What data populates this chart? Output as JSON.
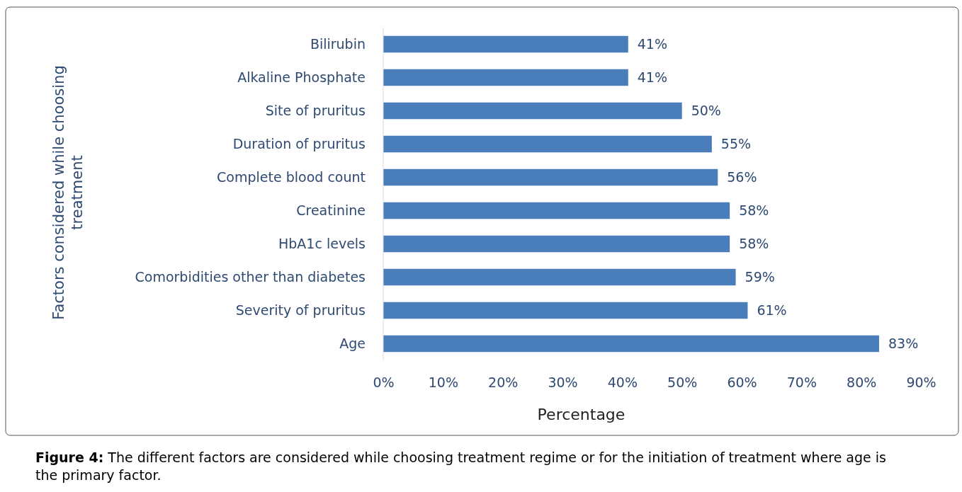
{
  "chart_data": {
    "type": "bar",
    "orientation": "horizontal",
    "categories": [
      "Bilirubin",
      "Alkaline Phosphate",
      "Site of pruritus",
      "Duration of  pruritus",
      "Complete blood count",
      "Creatinine",
      "HbA1c levels",
      "Comorbidities other than diabetes",
      "Severity of pruritus",
      "Age"
    ],
    "values": [
      41,
      41,
      50,
      55,
      56,
      58,
      58,
      59,
      61,
      83
    ],
    "value_labels": [
      "41%",
      "41%",
      "50%",
      "55%",
      "56%",
      "58%",
      "58%",
      "59%",
      "61%",
      "83%"
    ],
    "color": "#4a7ebb",
    "xlim": [
      0,
      90
    ],
    "xticks": [
      {
        "value": 0,
        "label": "0%"
      },
      {
        "value": 10,
        "label": "10%"
      },
      {
        "value": 20,
        "label": "20%"
      },
      {
        "value": 30,
        "label": "30%"
      },
      {
        "value": 40,
        "label": "40%"
      },
      {
        "value": 50,
        "label": "50%"
      },
      {
        "value": 60,
        "label": "60%"
      },
      {
        "value": 70,
        "label": "70%"
      },
      {
        "value": 80,
        "label": "80%"
      },
      {
        "value": 90,
        "label": "90%"
      }
    ],
    "xlabel": "Percentage",
    "ylabel": "Factors considered while choosing treatment",
    "annotations": [
      "Figure 4: The different factors are considered while choosing treatment regime or for the initiation of treatment where age is the primary factor."
    ]
  }
}
